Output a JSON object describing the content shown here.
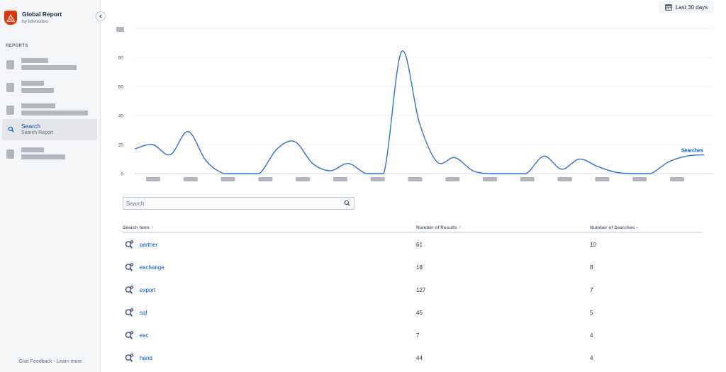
{
  "brand": {
    "title": "Global Report",
    "subtitle": "by bitvoodoo"
  },
  "sidebar": {
    "section_label": "REPORTS",
    "active_item": {
      "title": "Search",
      "subtitle": "Search Report",
      "icon": "search-icon"
    },
    "footer": {
      "feedback": "Give Feedback",
      "separator": " - ",
      "learn_more": "Learn more"
    }
  },
  "header": {
    "date_range_label": "Last 30 days",
    "date_icon": "calendar-icon"
  },
  "chart_data": {
    "type": "line",
    "series": [
      {
        "name": "Searches",
        "color": "#2f6fe0",
        "values": [
          17,
          20,
          13,
          29,
          9,
          0,
          0,
          0,
          17,
          22,
          7,
          2,
          7,
          0,
          0,
          84,
          35,
          8,
          11,
          2,
          0,
          0,
          0,
          12,
          3,
          10,
          5,
          1,
          0,
          0,
          8,
          12,
          13
        ]
      }
    ],
    "y_ticks": [
      "0",
      "20",
      "40",
      "60",
      "80"
    ],
    "ylim": [
      0,
      100
    ],
    "x_tick_count": 15,
    "grid": true
  },
  "search": {
    "placeholder": "Search",
    "value": ""
  },
  "table": {
    "headers": {
      "term": "Search term",
      "results": "Number of Results",
      "searches": "Number of Searches"
    },
    "sort_up": "⇡",
    "sort_down": "▾",
    "rows": [
      {
        "term": "partner",
        "results": "61",
        "searches": "10"
      },
      {
        "term": "exchange",
        "results": "18",
        "searches": "8"
      },
      {
        "term": "export",
        "results": "127",
        "searches": "7"
      },
      {
        "term": "sql",
        "results": "45",
        "searches": "5"
      },
      {
        "term": "exc",
        "results": "7",
        "searches": "4"
      },
      {
        "term": "hand",
        "results": "44",
        "searches": "4"
      }
    ]
  },
  "colors": {
    "accent": "#0052cc",
    "line": "#2f6fe0",
    "brand": "#de350b",
    "placeholder": "#b3b6bd"
  }
}
